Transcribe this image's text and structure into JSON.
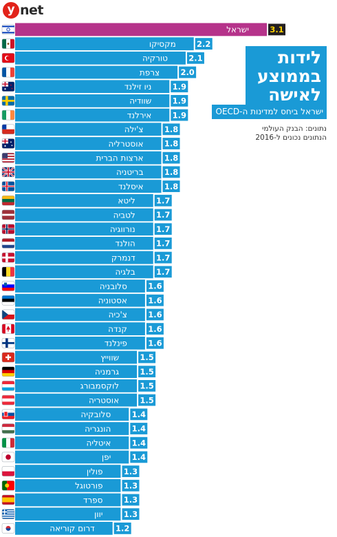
{
  "brand": {
    "logo_y": "y",
    "logo_net": "net"
  },
  "title_lines": [
    "לידות",
    "בממוצע",
    "לאישה"
  ],
  "subtitle": "ישראל ביחס למדינות ה-OECD",
  "source_lines": [
    "נתונים: הבנק העולמי",
    "הנתונים נכונים ל-2016"
  ],
  "colors": {
    "highlight": "#b5338a",
    "bar": "#1a9ad6",
    "value_box_highlight": "#231f20",
    "value_box": "#1a9ad6",
    "value_text_highlight": "#ffd200",
    "value_text": "#ffffff"
  },
  "chart_data": {
    "type": "bar",
    "orientation": "horizontal",
    "categories": [
      "ישראל",
      "מקסיקו",
      "טורקיה",
      "צרפת",
      "ניו זילנד",
      "שוודיה",
      "אירלנד",
      "צ'ילה",
      "אוסטרליה",
      "ארצות הברית",
      "בריטניה",
      "איסלנד",
      "ליטא",
      "לטביה",
      "נורווגיה",
      "הולנד",
      "דנמרק",
      "בלגיה",
      "סלובניה",
      "אסטוניה",
      "צ'כיה",
      "קנדה",
      "פינלנד",
      "שווייץ",
      "גרמניה",
      "לוקסמבורג",
      "אוסטריה",
      "סלובקיה",
      "הונגריה",
      "איטליה",
      "יפן",
      "פולין",
      "פורטוגל",
      "ספרד",
      "יוון",
      "דרום קוריאה"
    ],
    "values": [
      3.1,
      2.2,
      2.1,
      2.0,
      1.9,
      1.9,
      1.9,
      1.8,
      1.8,
      1.8,
      1.8,
      1.8,
      1.7,
      1.7,
      1.7,
      1.7,
      1.7,
      1.7,
      1.6,
      1.6,
      1.6,
      1.6,
      1.6,
      1.5,
      1.5,
      1.5,
      1.5,
      1.4,
      1.4,
      1.4,
      1.4,
      1.3,
      1.3,
      1.3,
      1.3,
      1.2
    ],
    "value_labels": [
      "3.1",
      "2.2",
      "2.1",
      "2.0",
      "1.9",
      "1.9",
      "1.9",
      "1.8",
      "1.8",
      "1.8",
      "1.8",
      "1.8",
      "1.7",
      "1.7",
      "1.7",
      "1.7",
      "1.7",
      "1.7",
      "1.6",
      "1.6",
      "1.6",
      "1.6",
      "1.6",
      "1.5",
      "1.5",
      "1.5",
      "1.5",
      "1.4",
      "1.4",
      "1.4",
      "1.4",
      "1.3",
      "1.3",
      "1.3",
      "1.3",
      "1.2"
    ],
    "highlight_index": 0,
    "flags": [
      "israel",
      "mexico",
      "turkey",
      "france",
      "new-zealand",
      "sweden",
      "ireland",
      "chile",
      "australia",
      "usa",
      "uk",
      "iceland",
      "lithuania",
      "latvia",
      "norway",
      "netherlands",
      "denmark",
      "belgium",
      "slovenia",
      "estonia",
      "czechia",
      "canada",
      "finland",
      "switzerland",
      "germany",
      "luxembourg",
      "austria",
      "slovakia",
      "hungary",
      "italy",
      "japan",
      "poland",
      "portugal",
      "spain",
      "greece",
      "south-korea"
    ],
    "title": "",
    "xlabel": "",
    "ylabel": "",
    "xlim": [
      0,
      3.1
    ],
    "grid": false,
    "legend": "none"
  }
}
